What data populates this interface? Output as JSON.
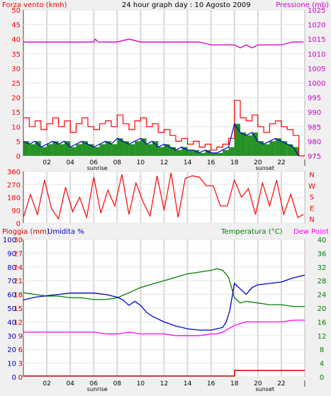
{
  "colors": {
    "background": "#f0f0f0",
    "plot": "#ffffff",
    "wind": "#ff0000",
    "gust": "#ff0000",
    "wind_avg": "#0000c8",
    "wind_fill": "#008000",
    "pressure": "#cc00cc",
    "temperature": "#008000",
    "humidity": "#0000c8",
    "dew": "#ff00ff",
    "rain": "#cc0000",
    "night": "#c8c8c8"
  },
  "chart_data": [
    {
      "type": "line",
      "title": "24 hour graph day : 10 Agosto 2009",
      "ylabel_left": "Forza vento (kmh)",
      "ylabel_right": "Pressione (mb)",
      "x_ticks": [
        "02",
        "04",
        "06",
        "08",
        "10",
        "12",
        "14",
        "16",
        "18",
        "20",
        "22",
        "|"
      ],
      "sunrise_label": "sunrise",
      "sunset_label": "sunset",
      "sunrise_hour": 6.3,
      "sunset_hour": 20.6,
      "xlim": [
        0,
        24
      ],
      "ylim_left": [
        0,
        50
      ],
      "yticks_left": [
        "0",
        "5",
        "10",
        "15",
        "20",
        "25",
        "30",
        "35",
        "40",
        "45",
        "50"
      ],
      "ylim_right": [
        975,
        1025
      ],
      "yticks_right": [
        "975",
        "980",
        "985",
        "990",
        "995",
        "1000",
        "1005",
        "1010",
        "1015",
        "1020",
        "1025"
      ],
      "series": [
        {
          "key": "gust",
          "x": [
            0,
            0.5,
            1,
            1.5,
            2,
            2.5,
            3,
            3.5,
            4,
            4.5,
            5,
            5.5,
            6,
            6.5,
            7,
            7.5,
            8,
            8.5,
            9,
            9.5,
            10,
            10.5,
            11,
            11.5,
            12,
            12.5,
            13,
            13.5,
            14,
            14.5,
            15,
            15.5,
            16,
            16.5,
            17,
            17.5,
            18,
            18.5,
            19,
            19.5,
            20,
            20.5,
            21,
            21.5,
            22,
            22.5,
            23,
            23.5
          ],
          "values": [
            13,
            10,
            12,
            9,
            11,
            13,
            10,
            12,
            8,
            11,
            13,
            10,
            9,
            11,
            12,
            10,
            14,
            11,
            9,
            12,
            13,
            10,
            11,
            8,
            9,
            7,
            5,
            6,
            4,
            5,
            3,
            4,
            2,
            3,
            4,
            6,
            19,
            13,
            12,
            14,
            10,
            8,
            11,
            12,
            10,
            9,
            7,
            0
          ]
        },
        {
          "key": "wind_avg",
          "x": [
            0,
            0.5,
            1,
            1.5,
            2,
            2.5,
            3,
            3.5,
            4,
            4.5,
            5,
            5.5,
            6,
            6.5,
            7,
            7.5,
            8,
            8.5,
            9,
            9.5,
            10,
            10.5,
            11,
            11.5,
            12,
            12.5,
            13,
            13.5,
            14,
            14.5,
            15,
            15.5,
            16,
            16.5,
            17,
            17.5,
            18,
            18.5,
            19,
            19.5,
            20,
            20.5,
            21,
            21.5,
            22,
            22.5,
            23,
            23.5
          ],
          "values": [
            5,
            4,
            5,
            3,
            4,
            5,
            4,
            5,
            3,
            4,
            5,
            4,
            3,
            4,
            5,
            4,
            6,
            5,
            4,
            5,
            6,
            4,
            5,
            3,
            4,
            3,
            2,
            3,
            2,
            2,
            1,
            2,
            1,
            1,
            2,
            3,
            11,
            8,
            7,
            8,
            5,
            4,
            5,
            6,
            5,
            4,
            3,
            0
          ]
        },
        {
          "key": "pressure",
          "x": [
            0,
            2,
            4,
            6,
            6.1,
            6.4,
            8,
            9,
            10,
            12,
            14,
            15,
            16,
            17,
            18,
            18.5,
            19,
            19.5,
            20,
            21,
            22,
            23,
            23.9
          ],
          "values": [
            1014,
            1014,
            1014,
            1014,
            1015,
            1014,
            1014,
            1015,
            1014,
            1014,
            1014,
            1014,
            1013,
            1013,
            1013,
            1012,
            1013,
            1012,
            1013,
            1013,
            1013,
            1014,
            1014
          ]
        }
      ]
    },
    {
      "type": "line",
      "title": "",
      "xlim": [
        0,
        24
      ],
      "ylim_left": [
        0,
        360
      ],
      "yticks_left": [
        "0",
        "90",
        "180",
        "270",
        "360"
      ],
      "compass_labels": [
        "N",
        "W",
        "S",
        "E",
        "N"
      ],
      "series": [
        {
          "key": "direction",
          "x": [
            0,
            0.6,
            1.2,
            1.8,
            2.4,
            3,
            3.6,
            4.2,
            4.8,
            5.4,
            6,
            6.6,
            7.2,
            7.8,
            8.4,
            9,
            9.6,
            10.2,
            10.8,
            11.4,
            12,
            12.6,
            13.2,
            13.8,
            14.4,
            15,
            15.6,
            16.2,
            16.8,
            17.4,
            18,
            18.6,
            19.2,
            19.8,
            20.4,
            21,
            21.6,
            22.2,
            22.8,
            23.4,
            23.9
          ],
          "values": [
            40,
            200,
            60,
            300,
            100,
            30,
            250,
            80,
            180,
            40,
            320,
            70,
            230,
            120,
            340,
            60,
            280,
            150,
            50,
            330,
            90,
            350,
            40,
            310,
            330,
            320,
            260,
            260,
            120,
            120,
            300,
            180,
            240,
            60,
            280,
            120,
            300,
            60,
            200,
            40,
            60
          ]
        }
      ]
    },
    {
      "type": "line",
      "title": "",
      "ylabel_left_rain": "Pioggia (mm)",
      "ylabel_left_hum": "Umidita %",
      "ylabel_right_temp": "Temperatura (°C)",
      "ylabel_right_dew": "Dew Point",
      "x_ticks": [
        "02",
        "04",
        "06",
        "08",
        "10",
        "12",
        "14",
        "16",
        "18",
        "20",
        "22",
        "|"
      ],
      "sunrise_label": "sunrise",
      "sunset_label": "sunset",
      "xlim": [
        0,
        24
      ],
      "ylim_rain": [
        0,
        30
      ],
      "yticks_rain": [
        "0",
        "3",
        "6",
        "9",
        "12",
        "15",
        "18",
        "21",
        "24",
        "27",
        "30"
      ],
      "ylim_hum": [
        0,
        100
      ],
      "yticks_hum": [
        "0",
        "10",
        "20",
        "30",
        "40",
        "50",
        "60",
        "70",
        "80",
        "90",
        "100"
      ],
      "ylim_temp": [
        0,
        40
      ],
      "yticks_temp": [
        "0",
        "4",
        "8",
        "12",
        "16",
        "20",
        "24",
        "28",
        "32",
        "36",
        "40"
      ],
      "series": [
        {
          "key": "temperature",
          "x": [
            0,
            1,
            2,
            3,
            4,
            5,
            6,
            7,
            8,
            9,
            10,
            11,
            12,
            13,
            14,
            15,
            16,
            16.5,
            17,
            17.5,
            18,
            18.5,
            19,
            20,
            21,
            22,
            23,
            24
          ],
          "values": [
            24.5,
            24,
            23.5,
            23.5,
            23,
            23,
            22.5,
            22.5,
            23,
            24.5,
            26,
            27,
            28,
            29,
            30,
            30.5,
            31,
            31.5,
            31,
            29,
            23,
            21.5,
            22,
            21.5,
            21,
            21,
            20.5,
            20.5
          ]
        },
        {
          "key": "humidity",
          "x": [
            0,
            1,
            2,
            3,
            4,
            5,
            6,
            7,
            8,
            8.5,
            9,
            9.5,
            10,
            10.5,
            11,
            12,
            13,
            14,
            15,
            16,
            16.5,
            17,
            17.3,
            17.6,
            18,
            18.5,
            19,
            19.5,
            20,
            21,
            22,
            23,
            24
          ],
          "values": [
            56,
            58,
            59,
            60,
            61,
            61,
            61,
            60,
            58,
            56,
            52,
            55,
            52,
            47,
            44,
            40,
            37,
            35,
            34,
            34,
            35,
            36,
            40,
            48,
            68,
            64,
            60,
            65,
            67,
            68,
            69,
            72,
            74
          ]
        },
        {
          "key": "dew",
          "x": [
            0,
            2,
            4,
            6,
            7,
            8,
            9,
            10,
            11,
            12,
            13,
            14,
            15,
            16,
            16.5,
            17,
            17.5,
            18,
            18.5,
            19,
            20,
            21,
            22,
            23,
            24
          ],
          "values": [
            13,
            13,
            13,
            13,
            12.5,
            12.5,
            13,
            12.5,
            12.5,
            12.5,
            12,
            12,
            12,
            12.5,
            12.5,
            13,
            14,
            15,
            15.5,
            16,
            16,
            16,
            16,
            16.5,
            16.5
          ]
        },
        {
          "key": "rain",
          "x": [
            0,
            18,
            18,
            24
          ],
          "values": [
            0.2,
            0.2,
            1.4,
            1.4
          ]
        }
      ]
    }
  ]
}
